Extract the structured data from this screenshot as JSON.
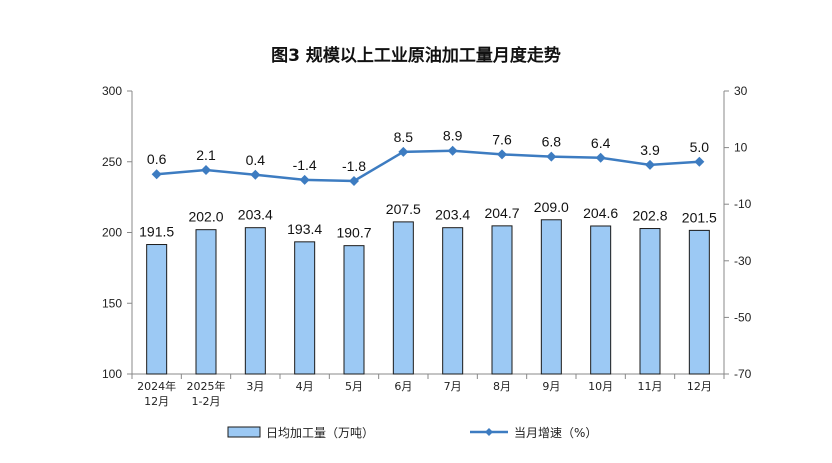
{
  "chart_data": {
    "type": "bar",
    "title": "图3  规模以上工业原油加工量月度走势",
    "categories": [
      [
        "2024年",
        "12月"
      ],
      [
        "2025年",
        "1-2月"
      ],
      [
        "3月"
      ],
      [
        "4月"
      ],
      [
        "5月"
      ],
      [
        "6月"
      ],
      [
        "7月"
      ],
      [
        "8月"
      ],
      [
        "9月"
      ],
      [
        "10月"
      ],
      [
        "11月"
      ],
      [
        "12月"
      ]
    ],
    "series": [
      {
        "name": "日均加工量（万吨）",
        "type": "bar",
        "axis": "left",
        "color": "#9cc9f4",
        "values": [
          191.5,
          202.0,
          203.4,
          193.4,
          190.7,
          207.5,
          203.4,
          204.7,
          209.0,
          204.6,
          202.8,
          201.5
        ],
        "labels": [
          "191.5",
          "202.0",
          "203.4",
          "193.4",
          "190.7",
          "207.5",
          "203.4",
          "204.7",
          "209.0",
          "204.6",
          "202.8",
          "201.5"
        ]
      },
      {
        "name": "当月增速（%）",
        "type": "line",
        "axis": "right",
        "color": "#3d7cc1",
        "values": [
          0.6,
          2.1,
          0.4,
          -1.4,
          -1.8,
          8.5,
          8.9,
          7.6,
          6.8,
          6.4,
          3.9,
          5.0
        ],
        "labels": [
          "0.6",
          "2.1",
          "0.4",
          "-1.4",
          "-1.8",
          "8.5",
          "8.9",
          "7.6",
          "6.8",
          "6.4",
          "3.9",
          "5.0"
        ]
      }
    ],
    "y_left": {
      "min": 100,
      "max": 300,
      "ticks": [
        100,
        150,
        200,
        250,
        300
      ]
    },
    "y_right": {
      "min": -70,
      "max": 30,
      "ticks": [
        -70,
        -50,
        -30,
        -10,
        10,
        30
      ]
    },
    "grid": false,
    "legend_position": "bottom"
  }
}
